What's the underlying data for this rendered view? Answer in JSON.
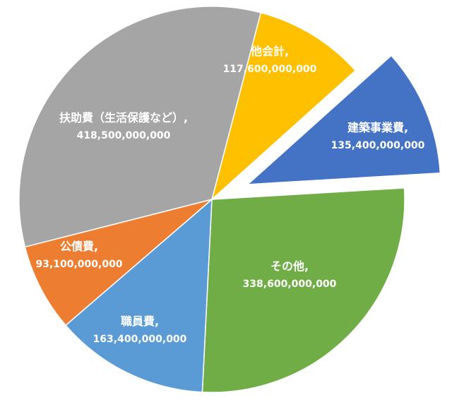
{
  "chart_data": {
    "type": "pie",
    "title": "",
    "categories": [
      "他会計",
      "建築事業費",
      "その他",
      "職員費",
      "公債費",
      "扶助費（生活保護など）"
    ],
    "values": [
      117600000000,
      135400000000,
      338600000000,
      163400000000,
      93100000000,
      418500000000
    ],
    "value_labels": [
      "117,600,000,000",
      "135,400,000,000",
      "338,600,000,000",
      "163,400,000,000",
      "93,100,000,000",
      "418,500,000,000"
    ],
    "colors": [
      "#FFC000",
      "#4472C4",
      "#70AD47",
      "#5B9BD5",
      "#ED7D31",
      "#A5A5A5"
    ],
    "exploded": [
      "建築事業費"
    ],
    "legend": "none",
    "data_labels": "category name and value"
  }
}
